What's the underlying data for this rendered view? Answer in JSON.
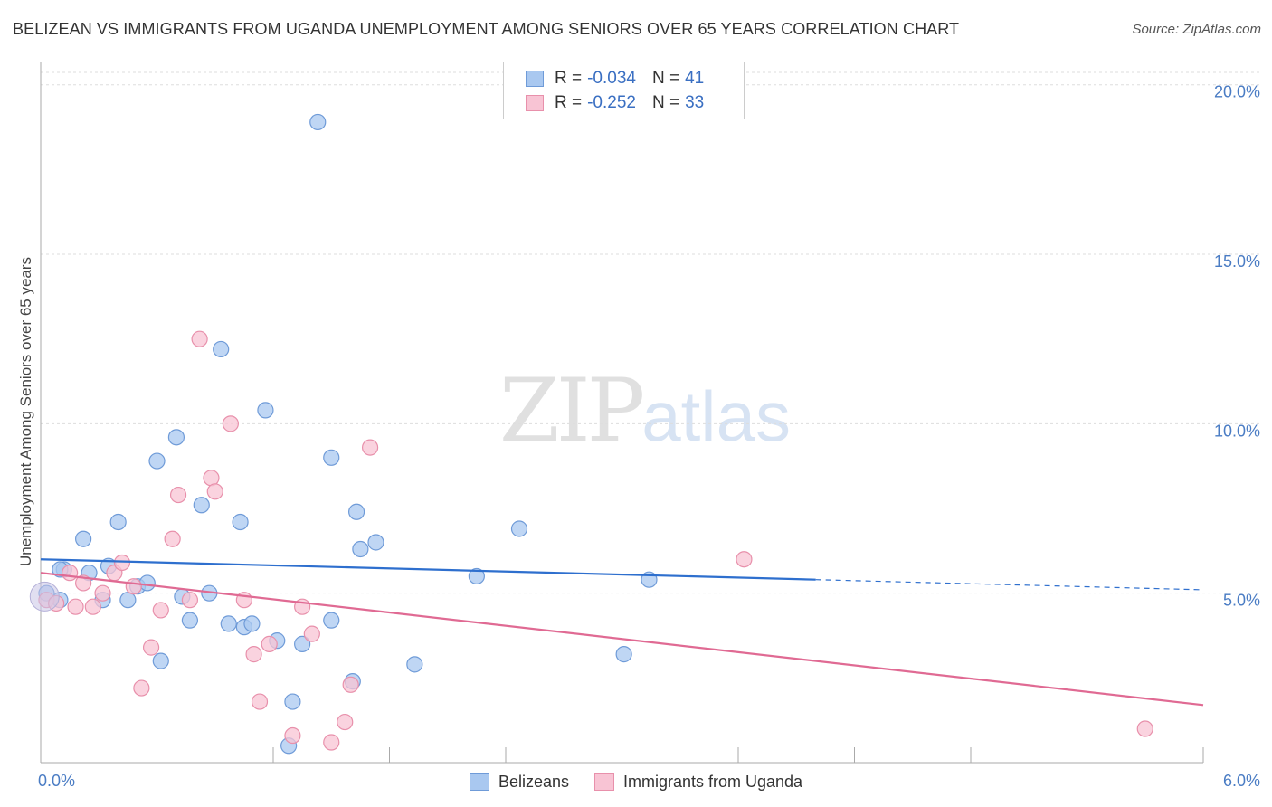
{
  "header": {
    "title": "BELIZEAN VS IMMIGRANTS FROM UGANDA UNEMPLOYMENT AMONG SENIORS OVER 65 YEARS CORRELATION CHART",
    "source": "Source: ZipAtlas.com"
  },
  "watermark": {
    "zip": "ZIP",
    "atlas": "atlas"
  },
  "legend": {
    "rows": [
      {
        "r_label": "R =",
        "r_value": "-0.034",
        "n_label": "N =",
        "n_value": "41",
        "color": "#a9c8f0",
        "border": "#6f9bd8"
      },
      {
        "r_label": "R =",
        "r_value": "-0.252",
        "n_label": "N =",
        "n_value": "33",
        "color": "#f8c4d4",
        "border": "#e890ab"
      }
    ]
  },
  "bottom_legend": {
    "items": [
      {
        "label": "Belizeans",
        "color": "#a9c8f0",
        "border": "#6f9bd8"
      },
      {
        "label": "Immigrants from Uganda",
        "color": "#f8c4d4",
        "border": "#e890ab"
      }
    ]
  },
  "chart_data": {
    "type": "scatter",
    "title": "BELIZEAN VS IMMIGRANTS FROM UGANDA UNEMPLOYMENT AMONG SENIORS OVER 65 YEARS CORRELATION CHART",
    "xlabel": "",
    "ylabel": "Unemployment Among Seniors over 65 years",
    "xlim": [
      0,
      6.0
    ],
    "ylim": [
      0,
      20.5
    ],
    "x_tick_labels": [
      "0.0%",
      "6.0%"
    ],
    "y_ticks": [
      5,
      10,
      15,
      20
    ],
    "y_tick_labels": [
      "5.0%",
      "10.0%",
      "15.0%",
      "20.0%"
    ],
    "grid": true,
    "series": [
      {
        "name": "Belizeans",
        "color": "#a9c8f0",
        "stroke": "#6f9bd8",
        "line_color": "#2e6fce",
        "trend": {
          "x0": 0.0,
          "y0": 6.0,
          "x1": 4.0,
          "y1": 5.4,
          "dash_to_x": 6.0,
          "dash_to_y": 5.1
        },
        "points": [
          [
            0.03,
            5.0
          ],
          [
            0.12,
            5.7
          ],
          [
            0.1,
            4.8
          ],
          [
            0.22,
            6.6
          ],
          [
            0.25,
            5.6
          ],
          [
            0.32,
            4.8
          ],
          [
            0.35,
            5.8
          ],
          [
            0.4,
            7.1
          ],
          [
            0.45,
            4.8
          ],
          [
            0.5,
            5.2
          ],
          [
            0.55,
            5.3
          ],
          [
            0.6,
            8.9
          ],
          [
            0.62,
            3.0
          ],
          [
            0.7,
            9.6
          ],
          [
            0.73,
            4.9
          ],
          [
            0.77,
            4.2
          ],
          [
            0.83,
            7.6
          ],
          [
            0.87,
            5.0
          ],
          [
            0.93,
            12.2
          ],
          [
            0.97,
            4.1
          ],
          [
            1.03,
            7.1
          ],
          [
            1.05,
            4.0
          ],
          [
            1.09,
            4.1
          ],
          [
            1.16,
            10.4
          ],
          [
            1.22,
            3.6
          ],
          [
            1.28,
            0.5
          ],
          [
            1.3,
            1.8
          ],
          [
            1.35,
            3.5
          ],
          [
            1.43,
            18.9
          ],
          [
            1.5,
            9.0
          ],
          [
            1.5,
            4.2
          ],
          [
            1.61,
            2.4
          ],
          [
            1.63,
            7.4
          ],
          [
            1.65,
            6.3
          ],
          [
            1.73,
            6.5
          ],
          [
            1.93,
            2.9
          ],
          [
            2.25,
            5.5
          ],
          [
            2.47,
            6.9
          ],
          [
            3.01,
            3.2
          ],
          [
            3.14,
            5.4
          ],
          [
            0.1,
            5.7
          ]
        ]
      },
      {
        "name": "Immigrants from Uganda",
        "color": "#f8c4d4",
        "stroke": "#e890ab",
        "line_color": "#e06a93",
        "trend": {
          "x0": 0.0,
          "y0": 5.6,
          "x1": 6.0,
          "y1": 1.7
        },
        "points": [
          [
            0.03,
            4.8
          ],
          [
            0.08,
            4.7
          ],
          [
            0.15,
            5.6
          ],
          [
            0.18,
            4.6
          ],
          [
            0.22,
            5.3
          ],
          [
            0.27,
            4.6
          ],
          [
            0.32,
            5.0
          ],
          [
            0.38,
            5.6
          ],
          [
            0.42,
            5.9
          ],
          [
            0.48,
            5.2
          ],
          [
            0.52,
            2.2
          ],
          [
            0.57,
            3.4
          ],
          [
            0.62,
            4.5
          ],
          [
            0.68,
            6.6
          ],
          [
            0.71,
            7.9
          ],
          [
            0.77,
            4.8
          ],
          [
            0.82,
            12.5
          ],
          [
            0.88,
            8.4
          ],
          [
            0.9,
            8.0
          ],
          [
            0.98,
            10.0
          ],
          [
            1.05,
            4.8
          ],
          [
            1.1,
            3.2
          ],
          [
            1.13,
            1.8
          ],
          [
            1.18,
            3.5
          ],
          [
            1.3,
            0.8
          ],
          [
            1.35,
            4.6
          ],
          [
            1.4,
            3.8
          ],
          [
            1.5,
            0.6
          ],
          [
            1.57,
            1.2
          ],
          [
            1.6,
            2.3
          ],
          [
            1.7,
            9.3
          ],
          [
            3.63,
            6.0
          ],
          [
            5.7,
            1.0
          ]
        ]
      }
    ]
  }
}
